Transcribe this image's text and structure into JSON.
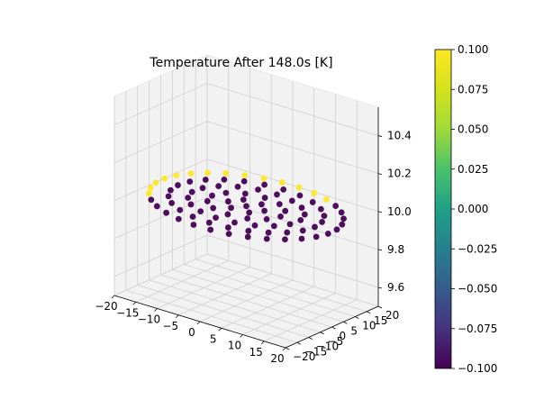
{
  "chart_data": {
    "type": "scatter",
    "title": "Temperature After 148.0s [K]",
    "x_ticks": [
      "−20",
      "−15",
      "−10",
      "−5",
      "0",
      "5",
      "10",
      "15",
      "20"
    ],
    "y_ticks": [
      "−20",
      "−15",
      "−10",
      "−5",
      "0",
      "5",
      "10",
      "15",
      "20"
    ],
    "z_ticks": [
      "9.6",
      "9.8",
      "10.0",
      "10.2",
      "10.4"
    ],
    "xlim": [
      -20,
      20
    ],
    "ylim": [
      -20,
      20
    ],
    "zlim": [
      9.5,
      10.55
    ],
    "grid": true,
    "colorbar": {
      "ticks": [
        "0.100",
        "0.075",
        "0.050",
        "0.025",
        "0.000",
        "−0.025",
        "−0.050",
        "−0.075",
        "−0.100"
      ],
      "range": [
        -0.1,
        0.1
      ],
      "colormap": "viridis"
    },
    "series": [
      {
        "description": "Concentric circular grid of nodes at z = 10; outer-ring nodes on the back arc have value 0.1, all other nodes -0.1",
        "z": 10.0,
        "rings": [
          {
            "radius": 4,
            "points": 6
          },
          {
            "radius": 8,
            "points": 12
          },
          {
            "radius": 12,
            "points": 18
          },
          {
            "radius": 16,
            "points": 24
          },
          {
            "radius": 20,
            "points": 32
          }
        ],
        "low_value": -0.1,
        "high_value": 0.1,
        "high_color": "#fde725",
        "low_color": "#440154"
      }
    ]
  }
}
